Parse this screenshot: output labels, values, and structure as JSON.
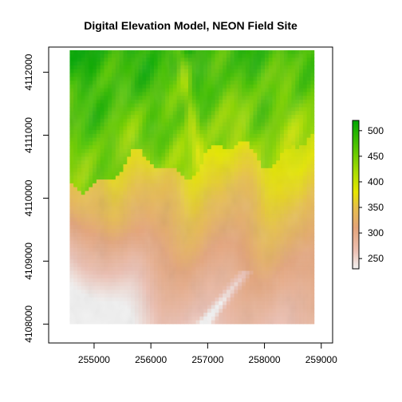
{
  "chart_data": {
    "type": "heatmap",
    "title": "Digital Elevation Model, NEON Field Site",
    "xlabel": "",
    "ylabel": "",
    "xlim": [
      254200,
      259200
    ],
    "ylim": [
      4107700,
      4112400
    ],
    "raster_extent": {
      "x": [
        254570,
        258880
      ],
      "y": [
        4108000,
        4112350
      ]
    },
    "x_ticks": [
      255000,
      256000,
      257000,
      258000,
      259000
    ],
    "x_tick_labels": [
      "255000",
      "256000",
      "257000",
      "258000",
      "259000"
    ],
    "y_ticks": [
      4108000,
      4109000,
      4110000,
      4111000,
      4112000
    ],
    "y_tick_labels": [
      "4108000",
      "4109000",
      "4110000",
      "4111000",
      "4112000"
    ],
    "colorbar": {
      "range": [
        230,
        520
      ],
      "ticks": [
        250,
        300,
        350,
        400,
        450,
        500
      ],
      "tick_labels": [
        "250",
        "300",
        "350",
        "400",
        "450",
        "500"
      ],
      "stops": [
        {
          "value": 230,
          "color": "#f2f2f2"
        },
        {
          "value": 265,
          "color": "#ecc0b3"
        },
        {
          "value": 310,
          "color": "#e4a47a"
        },
        {
          "value": 350,
          "color": "#e6bf4a"
        },
        {
          "value": 380,
          "color": "#e6e600"
        },
        {
          "value": 420,
          "color": "#a8dc00"
        },
        {
          "value": 470,
          "color": "#4fc400"
        },
        {
          "value": 520,
          "color": "#00a600"
        }
      ]
    },
    "grid": false,
    "legend": "right"
  }
}
